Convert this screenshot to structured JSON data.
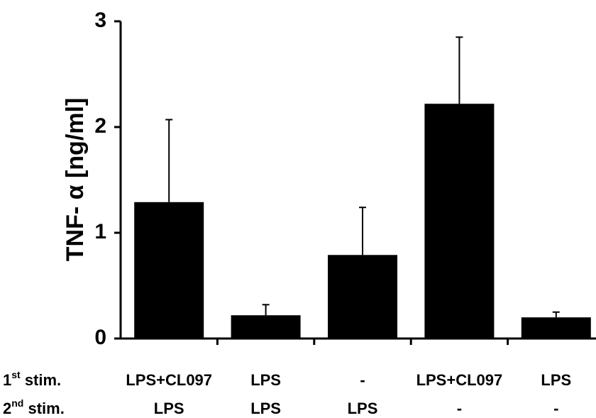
{
  "chart_data": {
    "type": "bar",
    "title": "",
    "ylabel": "TNF- α [ng/ml]",
    "ylim": [
      0,
      3
    ],
    "yticks": [
      "0",
      "1",
      "2",
      "3"
    ],
    "grid": false,
    "categories": [
      "LPS+CL097 / LPS",
      "LPS / LPS",
      "- / LPS",
      "LPS+CL097 / -",
      "LPS / -"
    ],
    "values": [
      1.29,
      0.22,
      0.79,
      2.22,
      0.2
    ],
    "errors": [
      0.78,
      0.1,
      0.45,
      0.63,
      0.05
    ],
    "bar_color": "#000000",
    "row_labels": {
      "first": {
        "main": "1",
        "sup": "st",
        "rest": " stim."
      },
      "second": {
        "main": "2",
        "sup": "nd",
        "rest": " stim."
      }
    },
    "first_stim": [
      "LPS+CL097",
      "LPS",
      "-",
      "LPS+CL097",
      "LPS"
    ],
    "second_stim": [
      "LPS",
      "LPS",
      "LPS",
      "-",
      "-"
    ]
  }
}
